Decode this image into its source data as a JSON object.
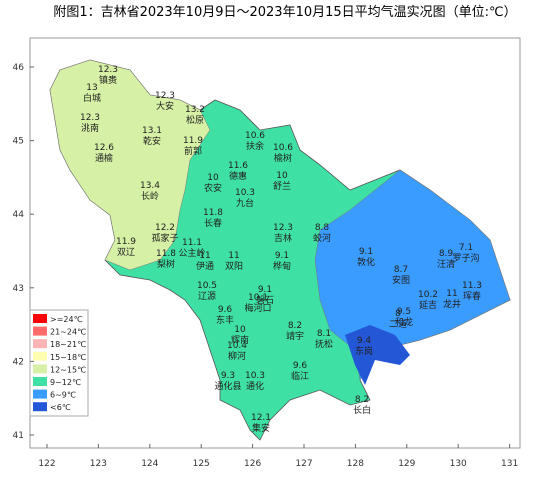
{
  "title": "附图1：吉林省2023年10月9日～2023年10月15日平均气温实况图（单位:℃）",
  "lon_ticks": [
    122,
    123,
    124,
    125,
    126,
    127,
    128,
    129,
    130,
    131
  ],
  "lat_ticks": [
    46,
    45,
    44,
    43,
    42,
    41
  ],
  "legend": [
    {
      "label": ">=24℃",
      "color": "#ff0000"
    },
    {
      "label": "21~24℃",
      "color": "#ff6a6a"
    },
    {
      "label": "18~21℃",
      "color": "#ffb4b4"
    },
    {
      "label": "15~18℃",
      "color": "#ffffb4"
    },
    {
      "label": "12~15℃",
      "color": "#d6f0a6"
    },
    {
      "label": "9~12℃",
      "color": "#3fe0a4"
    },
    {
      "label": "6~9℃",
      "color": "#3a9cff"
    },
    {
      "label": "<6℃",
      "color": "#2457d6"
    }
  ],
  "stations": [
    {
      "name": "镇赉",
      "value": 12.3
    },
    {
      "name": "白城",
      "value": 13
    },
    {
      "name": "洮南",
      "value": 12.3
    },
    {
      "name": "大安",
      "value": 12.3
    },
    {
      "name": "松原",
      "value": 13.2
    },
    {
      "name": "乾安",
      "value": 13.1
    },
    {
      "name": "前郭",
      "value": 11.9
    },
    {
      "name": "通榆",
      "value": 12.6
    },
    {
      "name": "长岭",
      "value": 13.4
    },
    {
      "name": "扶余",
      "value": 10.6
    },
    {
      "name": "榆树",
      "value": 10.6
    },
    {
      "name": "德惠",
      "value": 11.6
    },
    {
      "name": "农安",
      "value": 10
    },
    {
      "name": "九台",
      "value": 10.3
    },
    {
      "name": "舒兰",
      "value": 10
    },
    {
      "name": "长春",
      "value": 11.8
    },
    {
      "name": "吉林",
      "value": 12.3
    },
    {
      "name": "蛟河",
      "value": 8.8
    },
    {
      "name": "双辽",
      "value": 11.9
    },
    {
      "name": "孤家子",
      "value": 12.2
    },
    {
      "name": "公主岭",
      "value": 11.1
    },
    {
      "name": "伊通",
      "value": 11
    },
    {
      "name": "梨树",
      "value": 11.8
    },
    {
      "name": "双阳",
      "value": 11
    },
    {
      "name": "磐石",
      "value": 9.1
    },
    {
      "name": "桦甸",
      "value": 9.1
    },
    {
      "name": "敦化",
      "value": 9.1
    },
    {
      "name": "汪清",
      "value": 8.9
    },
    {
      "name": "罗子沟",
      "value": 7.1
    },
    {
      "name": "安图",
      "value": 8.7
    },
    {
      "name": "延吉",
      "value": 10.2
    },
    {
      "name": "龙井",
      "value": 11
    },
    {
      "name": "珲春",
      "value": 11.3
    },
    {
      "name": "和龙",
      "value": 9.5
    },
    {
      "name": "二道",
      "value": 8
    },
    {
      "name": "靖宇",
      "value": 8.2
    },
    {
      "name": "抚松",
      "value": 8.1
    },
    {
      "name": "东岗",
      "value": 9.4
    },
    {
      "name": "临江",
      "value": 9.6
    },
    {
      "name": "长白",
      "value": 8.2
    },
    {
      "name": "辽源",
      "value": 10.5
    },
    {
      "name": "东丰",
      "value": 9.6
    },
    {
      "name": "梅河口",
      "value": 10.1
    },
    {
      "name": "辉南",
      "value": 10
    },
    {
      "name": "柳河",
      "value": 10.4
    },
    {
      "name": "通化县",
      "value": 9.3
    },
    {
      "name": "通化",
      "value": 10.3
    },
    {
      "name": "集安",
      "value": 12.1
    }
  ]
}
